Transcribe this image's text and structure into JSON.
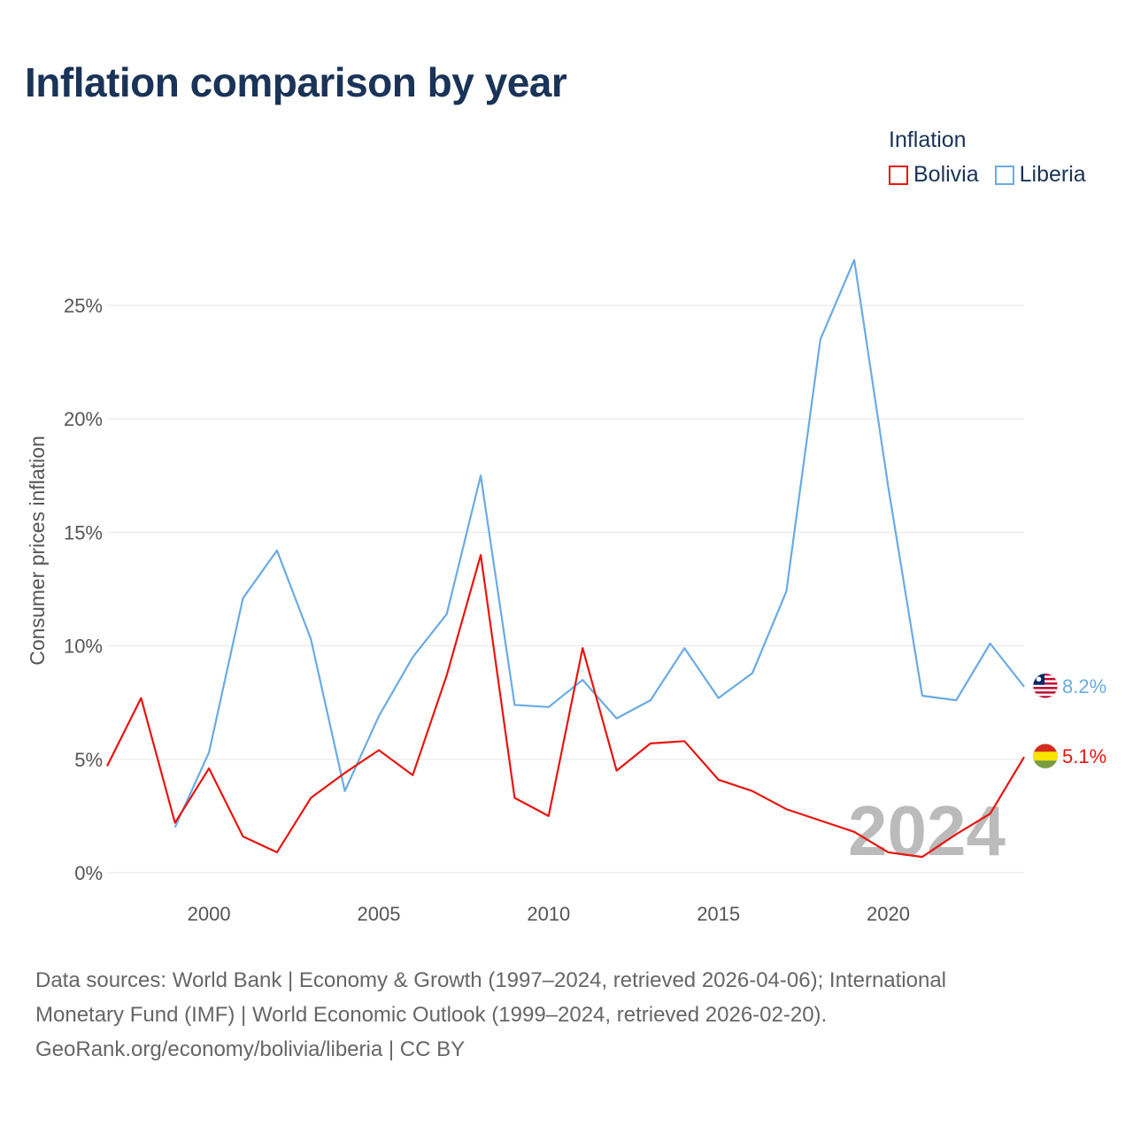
{
  "title": "Inflation comparison by year",
  "legend": {
    "title": "Inflation",
    "items": [
      {
        "label": "Bolivia",
        "color": "#e8150f"
      },
      {
        "label": "Liberia",
        "color": "#6aabe4"
      }
    ]
  },
  "chart_data": {
    "type": "line",
    "title": "Inflation comparison by year",
    "xlabel": "",
    "ylabel": "Consumer prices inflation",
    "xlim": [
      1997,
      2024
    ],
    "ylim": [
      0,
      27
    ],
    "yticks": [
      0,
      5,
      10,
      15,
      20,
      25
    ],
    "ytick_labels": [
      "0%",
      "5%",
      "10%",
      "15%",
      "20%",
      "25%"
    ],
    "xticks": [
      2000,
      2005,
      2010,
      2015,
      2020
    ],
    "xtick_labels": [
      "2000",
      "2005",
      "2010",
      "2015",
      "2020"
    ],
    "grid": true,
    "year_watermark": "2024",
    "series": [
      {
        "name": "Bolivia",
        "color": "#e8150f",
        "end_label": "5.1%",
        "flag": "bolivia-flag",
        "x": [
          1997,
          1998,
          1999,
          2000,
          2001,
          2002,
          2003,
          2004,
          2005,
          2006,
          2007,
          2008,
          2009,
          2010,
          2011,
          2012,
          2013,
          2014,
          2015,
          2016,
          2017,
          2018,
          2019,
          2020,
          2021,
          2022,
          2023,
          2024
        ],
        "values": [
          4.7,
          7.7,
          2.2,
          4.6,
          1.6,
          0.9,
          3.3,
          4.4,
          5.4,
          4.3,
          8.7,
          14.0,
          3.3,
          2.5,
          9.9,
          4.5,
          5.7,
          5.8,
          4.1,
          3.6,
          2.8,
          2.3,
          1.8,
          0.9,
          0.7,
          1.7,
          2.6,
          5.1
        ]
      },
      {
        "name": "Liberia",
        "color": "#6aabe4",
        "end_label": "8.2%",
        "flag": "liberia-flag",
        "x": [
          1999,
          2000,
          2001,
          2002,
          2003,
          2004,
          2005,
          2006,
          2007,
          2008,
          2009,
          2010,
          2011,
          2012,
          2013,
          2014,
          2015,
          2016,
          2017,
          2018,
          2019,
          2020,
          2021,
          2022,
          2023,
          2024
        ],
        "values": [
          2.0,
          5.3,
          12.1,
          14.2,
          10.3,
          3.6,
          6.9,
          9.5,
          11.4,
          17.5,
          7.4,
          7.3,
          8.5,
          6.8,
          7.6,
          9.9,
          7.7,
          8.8,
          12.4,
          23.5,
          27.0,
          17.0,
          7.8,
          7.6,
          10.1,
          8.2
        ]
      }
    ]
  },
  "footer": {
    "line1": "Data sources: World Bank | Economy & Growth (1997–2024, retrieved 2026-04-06); International",
    "line2": "Monetary Fund (IMF) | World Economic Outlook (1999–2024, retrieved 2026-02-20).",
    "line3": "GeoRank.org/economy/bolivia/liberia | CC BY"
  }
}
